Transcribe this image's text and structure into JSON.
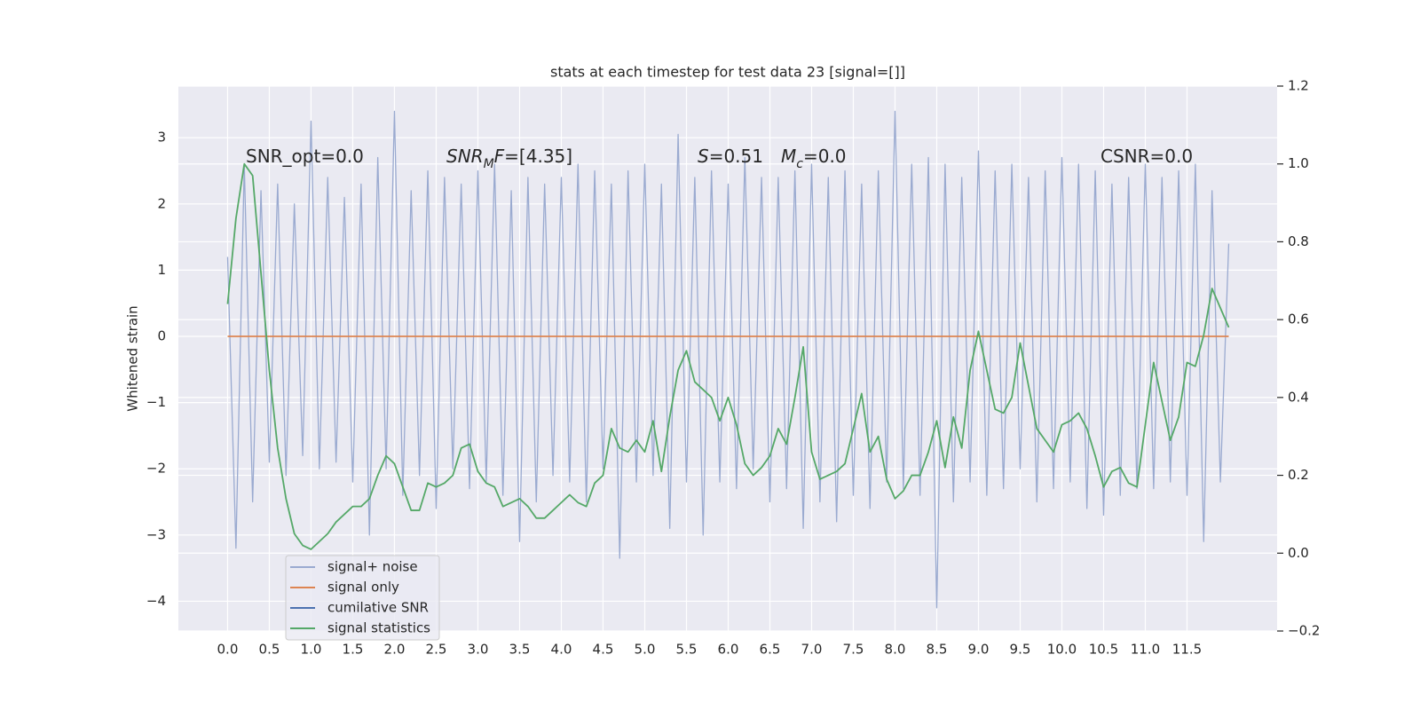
{
  "chart_data": {
    "type": "line",
    "title": "stats at each timestep for test data 23 [signal=[]]",
    "ylabel": "Whitened strain",
    "grid": true,
    "legend": "lower left",
    "background": "#eaeaf2",
    "xlim": [
      -0.59,
      12.58
    ],
    "ylim": [
      -4.45,
      3.78
    ],
    "y2lim": [
      -0.2,
      1.2
    ],
    "xticks": [
      {
        "value": 0,
        "label": "0.0"
      },
      0.5,
      {
        "value": 1,
        "label": "1.0"
      },
      1.5,
      {
        "value": 2,
        "label": "2.0"
      },
      2.5,
      {
        "value": 3,
        "label": "3.0"
      },
      3.5,
      {
        "value": 4,
        "label": "4.0"
      },
      4.5,
      {
        "value": 5,
        "label": "5.0"
      },
      5.5,
      {
        "value": 6,
        "label": "6.0"
      },
      6.5,
      {
        "value": 7,
        "label": "7.0"
      },
      7.5,
      {
        "value": 8,
        "label": "8.0"
      },
      8.5,
      {
        "value": 9,
        "label": "9.0"
      },
      9.5,
      {
        "value": 10,
        "label": "10.0"
      },
      10.5,
      {
        "value": 11,
        "label": "11.0"
      },
      11.5
    ],
    "yticks": [
      {
        "value": -4,
        "label": "−4"
      },
      {
        "value": -3,
        "label": "−3"
      },
      {
        "value": -2,
        "label": "−2"
      },
      {
        "value": -1,
        "label": "−1"
      },
      0,
      1,
      2,
      3
    ],
    "y2ticks": [
      {
        "value": -0.2,
        "label": "−0.2"
      },
      {
        "value": 0,
        "label": "0.0"
      },
      0.2,
      0.4,
      0.6,
      0.8,
      {
        "value": 1,
        "label": "1.0"
      },
      1.2
    ],
    "annotations": [
      {
        "parts": [
          {
            "text": "SNR_opt=0.0"
          }
        ]
      },
      {
        "parts": [
          {
            "text": "SNR",
            "style": "italic"
          },
          {
            "text": "M",
            "style": "sub"
          },
          {
            "text": "F",
            "style": "italic"
          },
          {
            "text": "=[4.35]"
          }
        ]
      },
      {
        "parts": [
          {
            "text": "S",
            "style": "italic"
          },
          {
            "text": "=0.51"
          }
        ]
      },
      {
        "parts": [
          {
            "text": "M",
            "style": "italic"
          },
          {
            "text": "c",
            "style": "sub"
          },
          {
            "text": "=0.0"
          }
        ]
      },
      {
        "parts": [
          {
            "text": "CSNR=0.0"
          }
        ]
      }
    ],
    "x": [
      0.0,
      0.1,
      0.2,
      0.3,
      0.4,
      0.5,
      0.6,
      0.7,
      0.8,
      0.9,
      1.0,
      1.1,
      1.2,
      1.3,
      1.4,
      1.5,
      1.6,
      1.7,
      1.8,
      1.9,
      2.0,
      2.1,
      2.2,
      2.3,
      2.4,
      2.5,
      2.6,
      2.7,
      2.8,
      2.9,
      3.0,
      3.1,
      3.2,
      3.3,
      3.4,
      3.5,
      3.6,
      3.7,
      3.8,
      3.9,
      4.0,
      4.1,
      4.2,
      4.3,
      4.4,
      4.5,
      4.6,
      4.7,
      4.8,
      4.9,
      5.0,
      5.1,
      5.2,
      5.3,
      5.4,
      5.5,
      5.6,
      5.7,
      5.8,
      5.9,
      6.0,
      6.1,
      6.2,
      6.3,
      6.4,
      6.5,
      6.6,
      6.7,
      6.8,
      6.9,
      7.0,
      7.1,
      7.2,
      7.3,
      7.4,
      7.5,
      7.6,
      7.7,
      7.8,
      7.9,
      8.0,
      8.1,
      8.2,
      8.3,
      8.4,
      8.5,
      8.6,
      8.7,
      8.8,
      8.9,
      9.0,
      9.1,
      9.2,
      9.3,
      9.4,
      9.5,
      9.6,
      9.7,
      9.8,
      9.9,
      10.0,
      10.1,
      10.2,
      10.3,
      10.4,
      10.5,
      10.6,
      10.7,
      10.8,
      10.9,
      11.0,
      11.1,
      11.2,
      11.3,
      11.4,
      11.5,
      11.6,
      11.7,
      11.8,
      11.9,
      12.0
    ],
    "series": [
      {
        "name": "signal+ noise",
        "color": "#9aaad0",
        "values": [
          1.2,
          -3.2,
          2.6,
          -2.5,
          2.2,
          -1.9,
          2.3,
          -2.1,
          2.0,
          -1.8,
          3.25,
          -2.0,
          2.4,
          -1.9,
          2.1,
          -2.2,
          2.3,
          -3.0,
          2.7,
          -2.0,
          3.4,
          -2.4,
          2.2,
          -2.1,
          2.5,
          -2.6,
          2.4,
          -2.0,
          2.3,
          -2.3,
          2.5,
          -2.2,
          2.6,
          -2.4,
          2.2,
          -3.1,
          2.4,
          -2.5,
          2.3,
          -2.1,
          2.4,
          -2.2,
          2.6,
          -2.5,
          2.5,
          -2.0,
          2.3,
          -3.35,
          2.5,
          -2.2,
          2.6,
          -2.1,
          2.3,
          -2.9,
          3.05,
          -2.2,
          2.4,
          -3.0,
          2.5,
          -2.2,
          2.3,
          -2.3,
          2.7,
          -2.0,
          2.4,
          -2.5,
          2.4,
          -2.3,
          2.5,
          -2.9,
          2.6,
          -2.5,
          2.4,
          -2.8,
          2.5,
          -2.4,
          2.3,
          -2.6,
          2.5,
          -2.2,
          3.4,
          -2.3,
          2.6,
          -2.4,
          2.7,
          -4.1,
          2.6,
          -2.5,
          2.4,
          -2.2,
          2.8,
          -2.4,
          2.5,
          -2.3,
          2.6,
          -2.0,
          2.4,
          -2.5,
          2.5,
          -2.3,
          2.7,
          -2.2,
          2.6,
          -2.6,
          2.5,
          -2.7,
          2.3,
          -2.4,
          2.4,
          -2.3,
          2.6,
          -2.3,
          2.4,
          -2.2,
          2.5,
          -2.4,
          2.6,
          -3.1,
          2.2,
          -2.2,
          1.4
        ]
      },
      {
        "name": "signal only",
        "color": "#dd8452",
        "values": [
          0,
          0,
          0,
          0,
          0,
          0,
          0,
          0,
          0,
          0,
          0,
          0,
          0,
          0,
          0,
          0,
          0,
          0,
          0,
          0,
          0,
          0,
          0,
          0,
          0,
          0,
          0,
          0,
          0,
          0,
          0,
          0,
          0,
          0,
          0,
          0,
          0,
          0,
          0,
          0,
          0,
          0,
          0,
          0,
          0,
          0,
          0,
          0,
          0,
          0,
          0,
          0,
          0,
          0,
          0,
          0,
          0,
          0,
          0,
          0,
          0,
          0,
          0,
          0,
          0,
          0,
          0,
          0,
          0,
          0,
          0,
          0,
          0,
          0,
          0,
          0,
          0,
          0,
          0,
          0,
          0,
          0,
          0,
          0,
          0,
          0,
          0,
          0,
          0,
          0,
          0,
          0,
          0,
          0,
          0,
          0,
          0,
          0,
          0,
          0,
          0,
          0,
          0,
          0,
          0,
          0,
          0,
          0,
          0,
          0,
          0,
          0,
          0,
          0,
          0,
          0,
          0,
          0,
          0,
          0,
          0
        ]
      },
      {
        "name": "cumilative SNR",
        "color": "#4c72b0"
      },
      {
        "name": "signal statistics",
        "color": "#55a868",
        "axis": "y2",
        "values": [
          0.64,
          0.86,
          1.0,
          0.97,
          0.72,
          0.47,
          0.27,
          0.14,
          0.05,
          0.02,
          0.01,
          0.03,
          0.05,
          0.08,
          0.1,
          0.12,
          0.12,
          0.14,
          0.2,
          0.25,
          0.23,
          0.17,
          0.11,
          0.11,
          0.18,
          0.17,
          0.18,
          0.2,
          0.27,
          0.28,
          0.21,
          0.18,
          0.17,
          0.12,
          0.13,
          0.14,
          0.12,
          0.09,
          0.09,
          0.11,
          0.13,
          0.15,
          0.13,
          0.12,
          0.18,
          0.2,
          0.32,
          0.27,
          0.26,
          0.29,
          0.26,
          0.34,
          0.21,
          0.35,
          0.47,
          0.52,
          0.44,
          0.42,
          0.4,
          0.34,
          0.4,
          0.33,
          0.23,
          0.2,
          0.22,
          0.25,
          0.32,
          0.28,
          0.4,
          0.53,
          0.26,
          0.19,
          0.2,
          0.21,
          0.23,
          0.32,
          0.41,
          0.26,
          0.3,
          0.19,
          0.14,
          0.16,
          0.2,
          0.2,
          0.26,
          0.34,
          0.22,
          0.35,
          0.27,
          0.47,
          0.57,
          0.47,
          0.37,
          0.36,
          0.4,
          0.54,
          0.43,
          0.32,
          0.29,
          0.26,
          0.33,
          0.34,
          0.36,
          0.32,
          0.25,
          0.17,
          0.21,
          0.22,
          0.18,
          0.17,
          0.33,
          0.49,
          0.39,
          0.29,
          0.35,
          0.49,
          0.48,
          0.56,
          0.68,
          0.63,
          0.58
        ]
      }
    ]
  }
}
